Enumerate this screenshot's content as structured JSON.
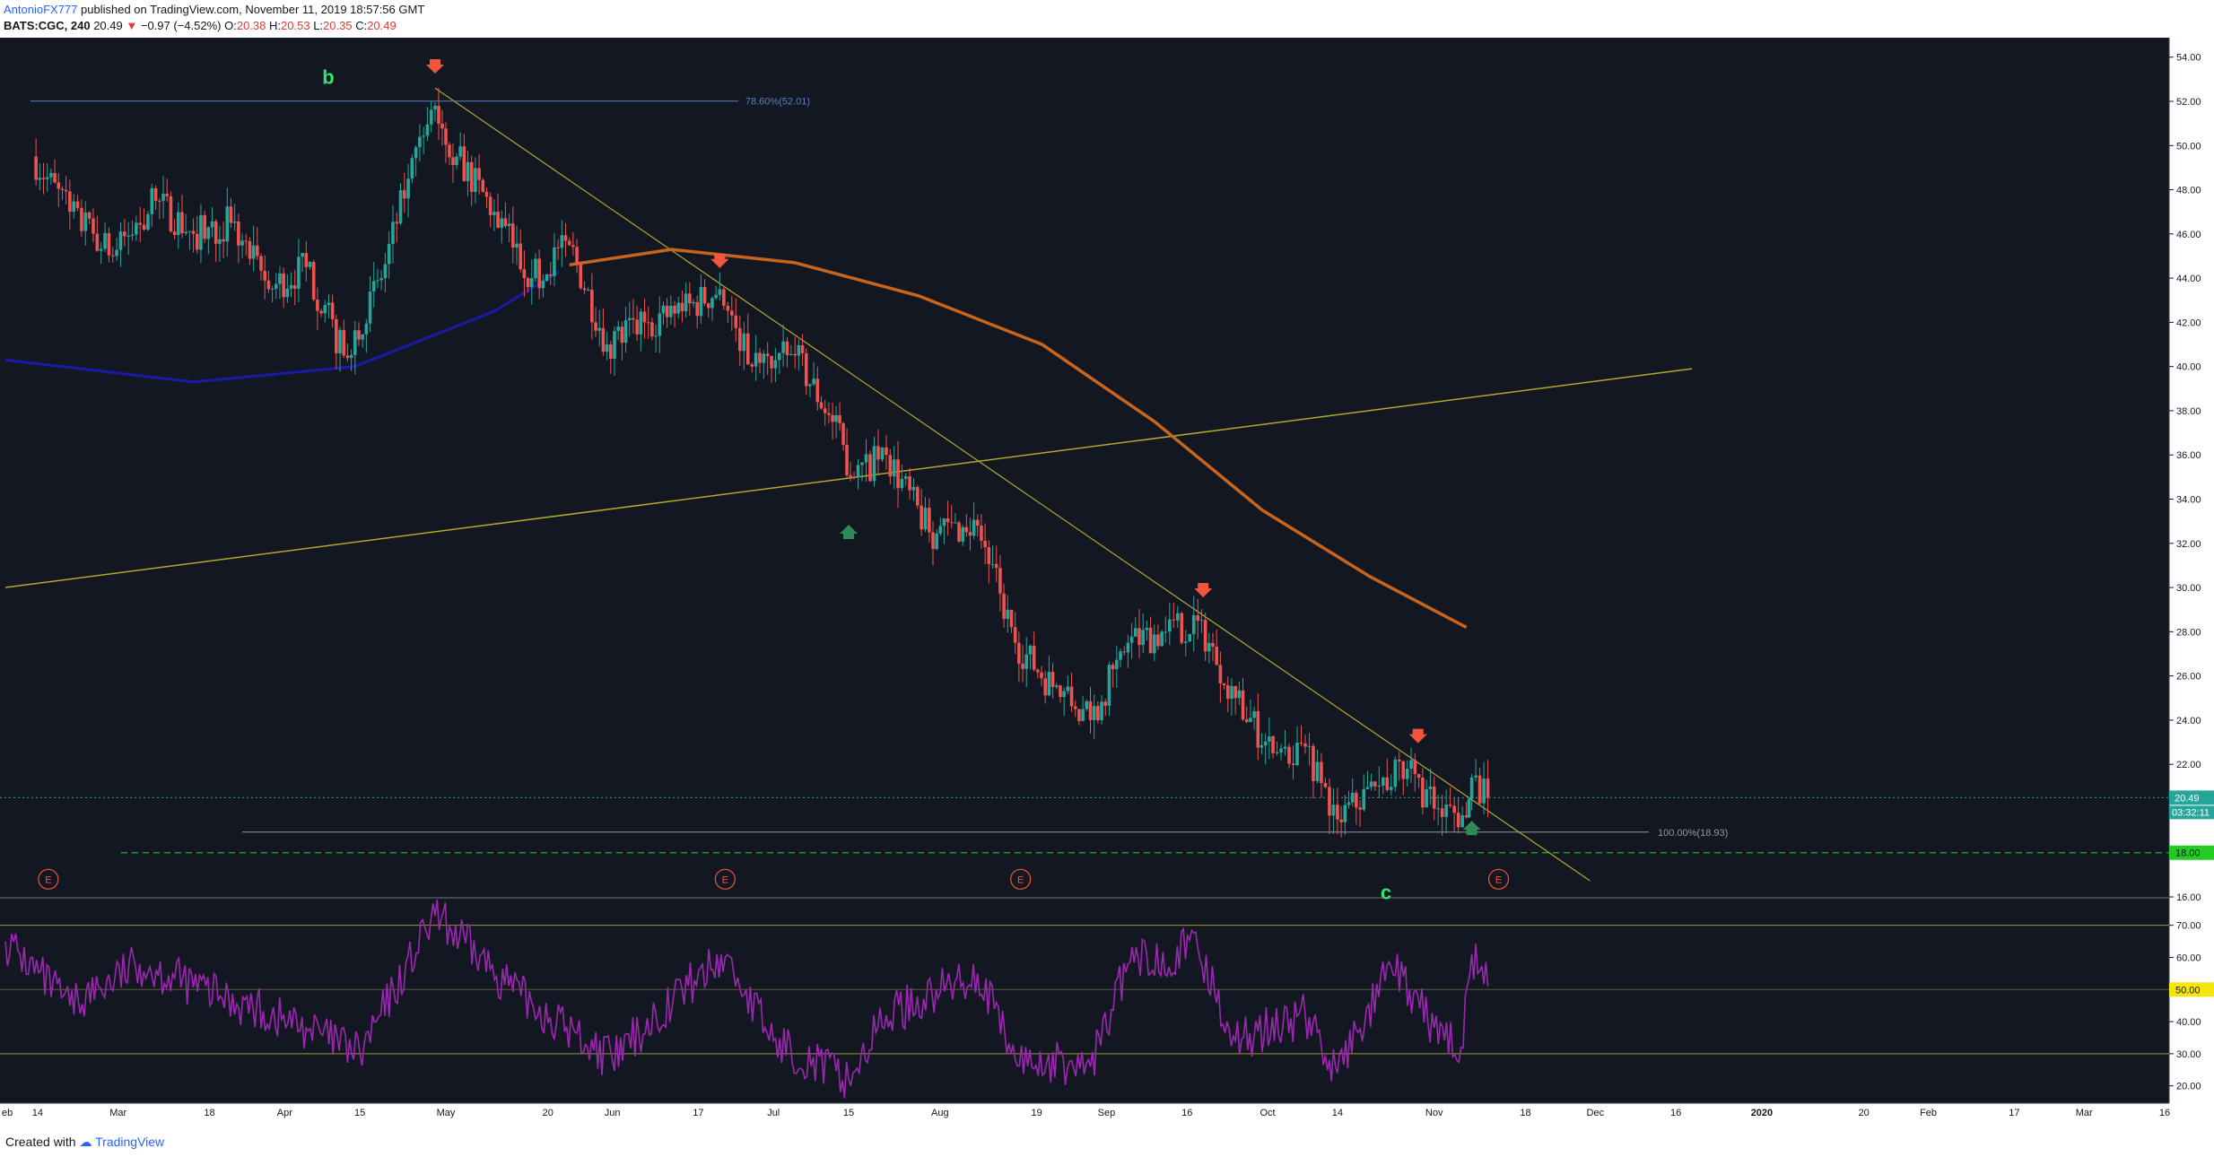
{
  "header": {
    "author": "AntonioFX777",
    "published_text": " published on TradingView.com, November 11, 2019 18:57:56 GMT",
    "symbol": "BATS:CGC, 240",
    "last": "20.49",
    "change_arrow": "▼",
    "change": "−0.97 (−4.52%)",
    "open_label": "O:",
    "open": "20.38",
    "high_label": "H:",
    "high": "20.53",
    "low_label": "L:",
    "low": "20.35",
    "close_label": "C:",
    "close": "20.49"
  },
  "footer": {
    "created_with": "Created with",
    "brand": "TradingView"
  },
  "colors": {
    "background": "#131722",
    "bull": "#26a69a",
    "bear": "#ef5350",
    "ma_fast": "#1a1aa6",
    "ma_slow": "#c8651b",
    "trendline": "#b5a82a",
    "rsi": "#9c27b0",
    "fib": "#5b7fc7",
    "support": "#1fb81f"
  },
  "chart_data": [
    {
      "type": "candlestick",
      "title": "",
      "ylim": [
        16,
        54.8
      ],
      "y_ticks": [
        "54.00",
        "52.00",
        "50.00",
        "48.00",
        "46.00",
        "44.00",
        "42.00",
        "40.00",
        "38.00",
        "36.00",
        "34.00",
        "32.00",
        "30.00",
        "28.00",
        "26.00",
        "24.00",
        "22.00",
        "18.00",
        "16.00"
      ],
      "x_tick_labels": [
        "eb",
        "14",
        "Mar",
        "18",
        "Apr",
        "15",
        "May",
        "20",
        "Jun",
        "17",
        "Jul",
        "15",
        "Aug",
        "19",
        "Sep",
        "16",
        "Oct",
        "14",
        "Nov",
        "18",
        "Dec",
        "16",
        "2020",
        "20",
        "Feb",
        "17",
        "Mar",
        "16"
      ],
      "price_label": "20.49",
      "countdown": "03:32:11",
      "support_label": "18.00",
      "support_level": 18.0,
      "fib_levels": [
        {
          "label": "78.60%(52.01)",
          "value": 52.01
        },
        {
          "label": "100.00%(18.93)",
          "value": 18.93
        }
      ],
      "wave_labels": [
        "b",
        "c"
      ],
      "earnings_label": "E",
      "earnings_count": 4,
      "arrows_down": 5,
      "arrows_up": 2,
      "swing_points": [
        {
          "date": "2019-02-13",
          "close": 49.5
        },
        {
          "date": "2019-02-20",
          "close": 47.0
        },
        {
          "date": "2019-02-28",
          "close": 45.0
        },
        {
          "date": "2019-03-08",
          "close": 47.5
        },
        {
          "date": "2019-03-15",
          "close": 46.0
        },
        {
          "date": "2019-03-22",
          "close": 46.5
        },
        {
          "date": "2019-03-29",
          "close": 43.5
        },
        {
          "date": "2019-04-05",
          "close": 44.5
        },
        {
          "date": "2019-04-12",
          "close": 40.5
        },
        {
          "date": "2019-04-19",
          "close": 44.0
        },
        {
          "date": "2019-04-24",
          "close": 48.5
        },
        {
          "date": "2019-04-29",
          "close": 51.8
        },
        {
          "date": "2019-05-03",
          "close": 49.5
        },
        {
          "date": "2019-05-10",
          "close": 47.0
        },
        {
          "date": "2019-05-17",
          "close": 44.0
        },
        {
          "date": "2019-05-24",
          "close": 45.5
        },
        {
          "date": "2019-05-31",
          "close": 41.0
        },
        {
          "date": "2019-06-07",
          "close": 42.0
        },
        {
          "date": "2019-06-14",
          "close": 42.5
        },
        {
          "date": "2019-06-21",
          "close": 43.5
        },
        {
          "date": "2019-06-27",
          "close": 40.0
        },
        {
          "date": "2019-07-05",
          "close": 40.5
        },
        {
          "date": "2019-07-12",
          "close": 37.5
        },
        {
          "date": "2019-07-16",
          "close": 35.0
        },
        {
          "date": "2019-07-22",
          "close": 36.0
        },
        {
          "date": "2019-07-30",
          "close": 32.5
        },
        {
          "date": "2019-08-08",
          "close": 32.8
        },
        {
          "date": "2019-08-15",
          "close": 27.5
        },
        {
          "date": "2019-08-22",
          "close": 25.5
        },
        {
          "date": "2019-08-29",
          "close": 24.0
        },
        {
          "date": "2019-09-05",
          "close": 27.5
        },
        {
          "date": "2019-09-12",
          "close": 28.0
        },
        {
          "date": "2019-09-18",
          "close": 28.5
        },
        {
          "date": "2019-09-25",
          "close": 25.0
        },
        {
          "date": "2019-10-02",
          "close": 22.5
        },
        {
          "date": "2019-10-08",
          "close": 22.8
        },
        {
          "date": "2019-10-14",
          "close": 19.5
        },
        {
          "date": "2019-10-21",
          "close": 21.0
        },
        {
          "date": "2019-10-27",
          "close": 21.8
        },
        {
          "date": "2019-11-01",
          "close": 20.0
        },
        {
          "date": "2019-11-07",
          "close": 19.6
        },
        {
          "date": "2019-11-08",
          "close": 21.4
        },
        {
          "date": "2019-11-11",
          "close": 20.49
        }
      ],
      "ma_fast_points": [
        {
          "date": "2019-02-08",
          "value": 40.3
        },
        {
          "date": "2019-03-15",
          "value": 39.3
        },
        {
          "date": "2019-04-14",
          "value": 40.0
        },
        {
          "date": "2019-05-10",
          "value": 42.5
        },
        {
          "date": "2019-05-22",
          "value": 44.3
        }
      ],
      "ma_slow_points": [
        {
          "date": "2019-05-24",
          "value": 44.6
        },
        {
          "date": "2019-06-12",
          "value": 45.3
        },
        {
          "date": "2019-07-05",
          "value": 44.7
        },
        {
          "date": "2019-07-28",
          "value": 43.2
        },
        {
          "date": "2019-08-20",
          "value": 41.0
        },
        {
          "date": "2019-09-10",
          "value": 37.5
        },
        {
          "date": "2019-09-30",
          "value": 33.5
        },
        {
          "date": "2019-10-20",
          "value": 30.5
        },
        {
          "date": "2019-11-07",
          "value": 28.2
        }
      ]
    },
    {
      "type": "line",
      "title": "",
      "ylim": [
        16,
        78
      ],
      "y_ticks": [
        "70.00",
        "60.00",
        "40.00",
        "30.00",
        "20.00"
      ],
      "marker_label": "50.00",
      "levels": [
        70,
        50,
        30
      ],
      "points": [
        {
          "date": "2019-02-08",
          "value": 65
        },
        {
          "date": "2019-02-20",
          "value": 45
        },
        {
          "date": "2019-03-05",
          "value": 58
        },
        {
          "date": "2019-03-20",
          "value": 48
        },
        {
          "date": "2019-04-05",
          "value": 38
        },
        {
          "date": "2019-04-15",
          "value": 30
        },
        {
          "date": "2019-04-29",
          "value": 73
        },
        {
          "date": "2019-05-15",
          "value": 48
        },
        {
          "date": "2019-06-01",
          "value": 28
        },
        {
          "date": "2019-06-14",
          "value": 50
        },
        {
          "date": "2019-06-22",
          "value": 60
        },
        {
          "date": "2019-07-01",
          "value": 34
        },
        {
          "date": "2019-07-15",
          "value": 22
        },
        {
          "date": "2019-07-22",
          "value": 42
        },
        {
          "date": "2019-08-08",
          "value": 55
        },
        {
          "date": "2019-08-15",
          "value": 28
        },
        {
          "date": "2019-08-29",
          "value": 26
        },
        {
          "date": "2019-09-05",
          "value": 58
        },
        {
          "date": "2019-09-18",
          "value": 63
        },
        {
          "date": "2019-09-25",
          "value": 34
        },
        {
          "date": "2019-10-08",
          "value": 42
        },
        {
          "date": "2019-10-14",
          "value": 24
        },
        {
          "date": "2019-10-24",
          "value": 57
        },
        {
          "date": "2019-11-01",
          "value": 38
        },
        {
          "date": "2019-11-06",
          "value": 32
        },
        {
          "date": "2019-11-08",
          "value": 61
        },
        {
          "date": "2019-11-11",
          "value": 51
        }
      ]
    }
  ]
}
